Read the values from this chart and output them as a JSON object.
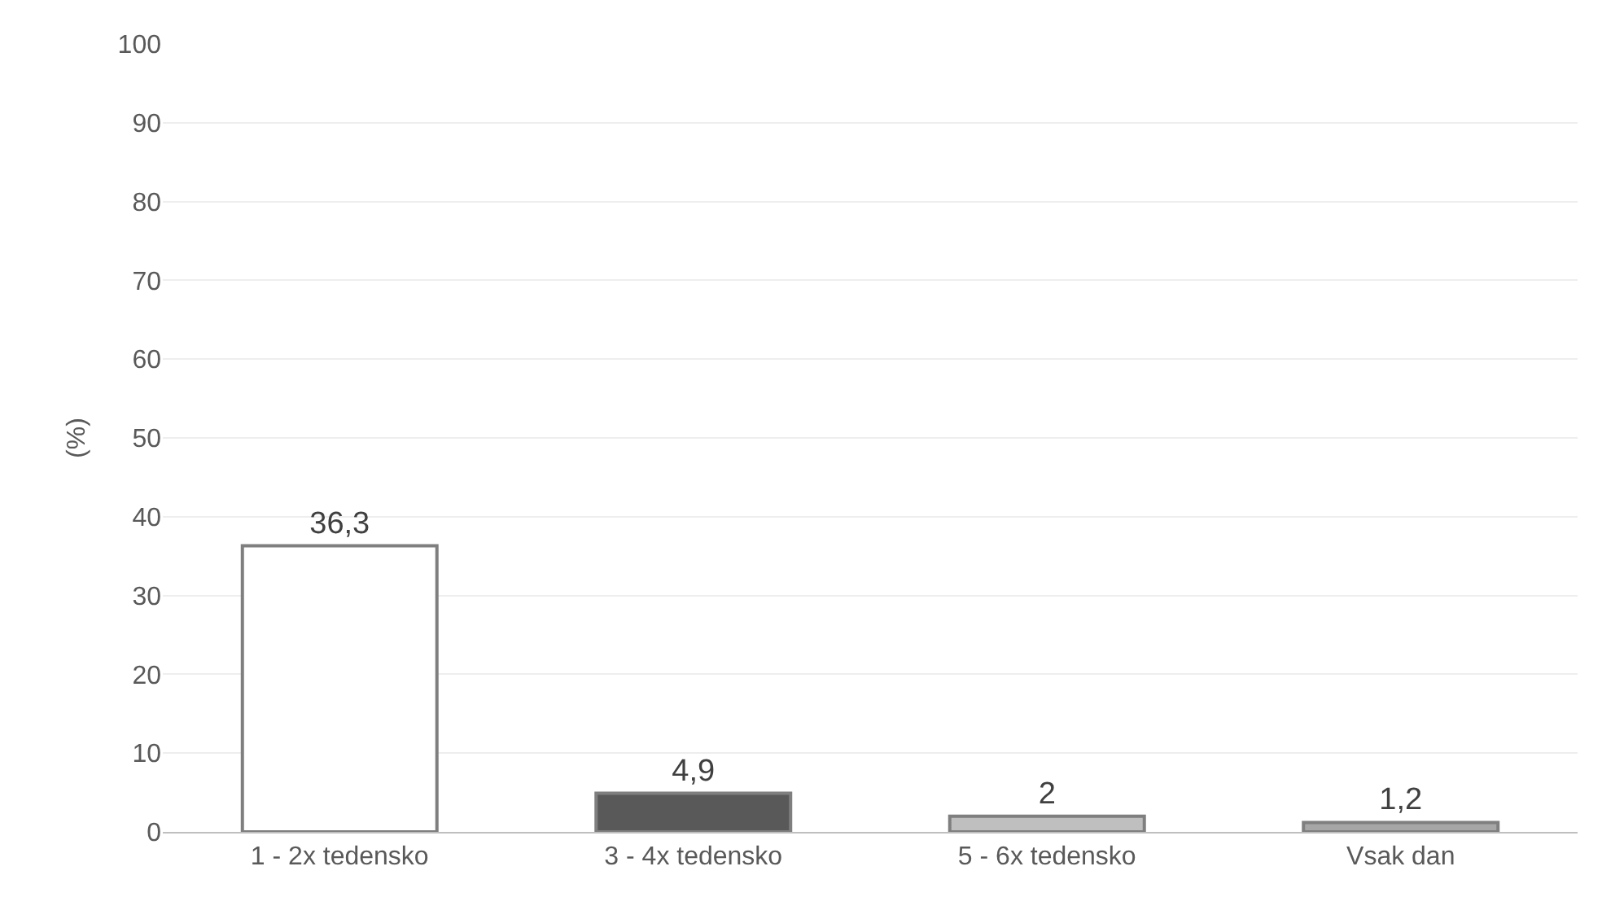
{
  "chart_data": {
    "type": "bar",
    "ylabel": "(%)",
    "categories": [
      "1 - 2x tedensko",
      "3 - 4x tedensko",
      "5 - 6x tedensko",
      "Vsak dan"
    ],
    "values": [
      36.3,
      4.9,
      2,
      1.2
    ],
    "value_labels": [
      "36,3",
      "4,9",
      "2",
      "1,2"
    ],
    "colors": [
      "#ffffff",
      "#595959",
      "#bfbfbf",
      "#a6a6a6"
    ],
    "ylim": [
      0,
      100
    ],
    "yticks": [
      0,
      10,
      20,
      30,
      40,
      50,
      60,
      70,
      80,
      90,
      100
    ],
    "grid": "y",
    "legend": false
  }
}
